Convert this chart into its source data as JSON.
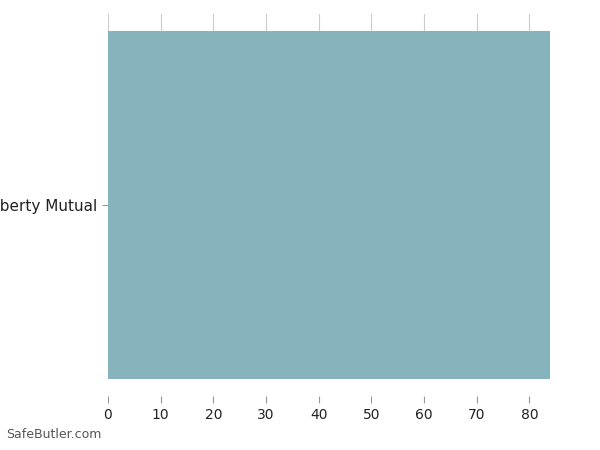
{
  "categories": [
    "Liberty Mutual"
  ],
  "values": [
    84
  ],
  "bar_color": "#87b4bc",
  "xlim": [
    0,
    90
  ],
  "xticks": [
    0,
    10,
    20,
    30,
    40,
    50,
    60,
    70,
    80
  ],
  "xlabel": "",
  "ylabel": "",
  "title": "",
  "background_color": "#ffffff",
  "tick_line_color": "#cccccc",
  "watermark": "SafeButler.com",
  "bar_height": 0.98
}
